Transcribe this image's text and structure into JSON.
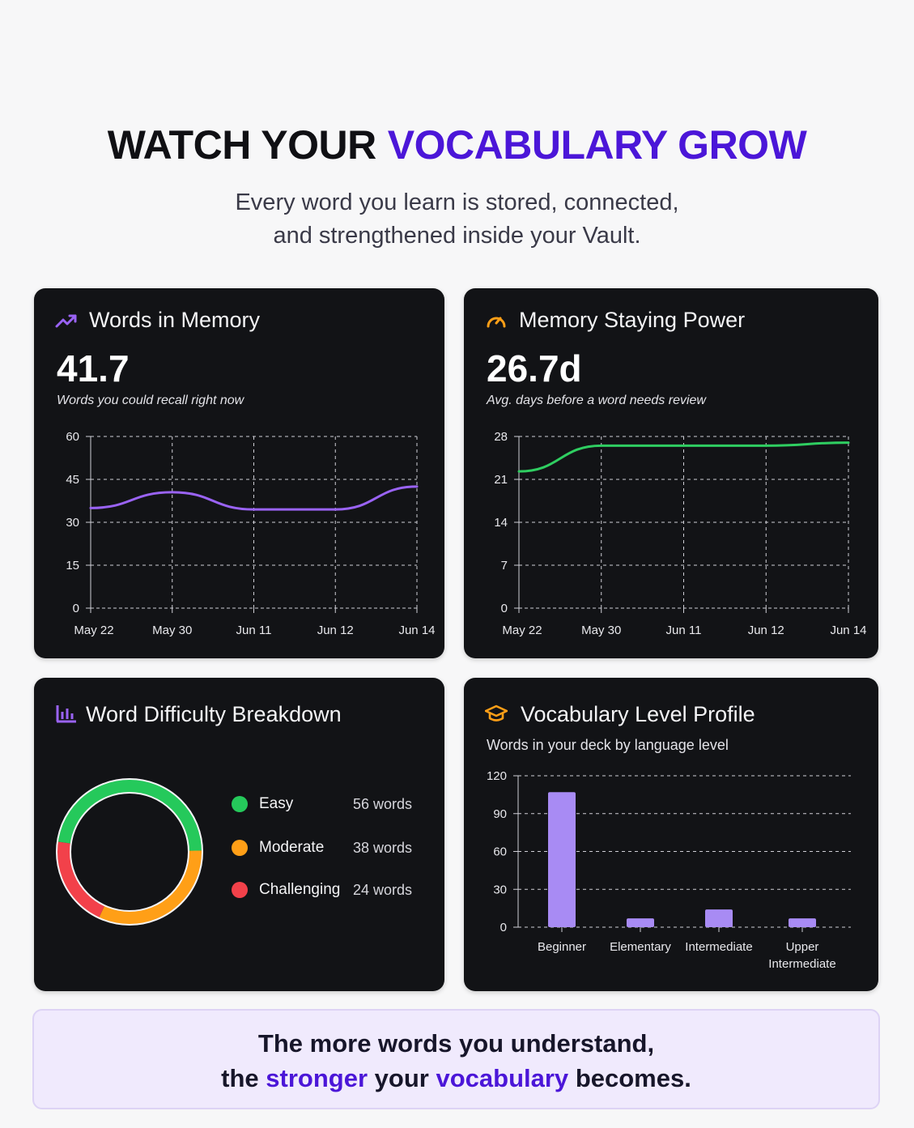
{
  "header": {
    "title_part1": "WATCH YOUR",
    "title_part2": "VOCABULARY GROW",
    "subtitle_line1": "Every word you learn is stored, connected,",
    "subtitle_line2": "and strengthened inside your Vault."
  },
  "colors": {
    "accent": "#4b16d8",
    "card_bg": "#121316",
    "purple_line": "#9a63f5",
    "green_line": "#2fce61",
    "bar_fill": "#a88bf4",
    "easy": "#25c95b",
    "moderate": "#ff9f17",
    "challenging": "#f2414a",
    "teal_sliver": "#27c6d6"
  },
  "cards": {
    "words_in_memory": {
      "title": "Words in Memory",
      "icon": "trending-up-icon",
      "value": "41.7",
      "caption": "Words you could recall right now"
    },
    "memory_staying_power": {
      "title": "Memory Staying Power",
      "icon": "gauge-icon",
      "value": "26.7d",
      "caption": "Avg. days before a word needs review"
    },
    "difficulty": {
      "title": "Word Difficulty Breakdown",
      "icon": "bar-chart-icon",
      "legend": [
        {
          "label": "Easy",
          "value": "56 words"
        },
        {
          "label": "Moderate",
          "value": "38 words"
        },
        {
          "label": "Challenging",
          "value": "24 words"
        }
      ]
    },
    "level_profile": {
      "title": "Vocabulary Level Profile",
      "icon": "graduation-cap-icon",
      "subtitle": "Words in your deck by language level"
    }
  },
  "chart_data": [
    {
      "type": "line",
      "x": [
        "May 22",
        "May 30",
        "Jun 11",
        "Jun 12",
        "Jun 14"
      ],
      "series": [
        {
          "values": [
            35,
            40.5,
            34.5,
            34.5,
            42.5
          ]
        }
      ],
      "yticks": [
        0,
        15,
        30,
        45,
        60
      ],
      "ylim": [
        0,
        60
      ],
      "grid": true
    },
    {
      "type": "line",
      "x": [
        "May 22",
        "May 30",
        "Jun 11",
        "Jun 12",
        "Jun 14"
      ],
      "series": [
        {
          "values": [
            22.3,
            26.5,
            26.5,
            26.5,
            27
          ]
        }
      ],
      "yticks": [
        0,
        7,
        14,
        21,
        28
      ],
      "ylim": [
        0,
        28
      ],
      "grid": true
    },
    {
      "type": "pie",
      "categories": [
        "Easy",
        "Moderate",
        "Challenging"
      ],
      "values": [
        56,
        38,
        24
      ],
      "units": "words"
    },
    {
      "type": "bar",
      "categories": [
        "Beginner",
        "Elementary",
        "Intermediate",
        "Upper Intermediate"
      ],
      "values": [
        107,
        7,
        14,
        7
      ],
      "yticks": [
        0,
        30,
        60,
        90,
        120
      ],
      "ylim": [
        0,
        120
      ],
      "grid": true
    }
  ],
  "footer": {
    "line1": "The more words you understand,",
    "line2_a": "the",
    "line2_b": "stronger",
    "line2_c": "your",
    "line2_d": "vocabulary",
    "line2_e": "becomes."
  }
}
